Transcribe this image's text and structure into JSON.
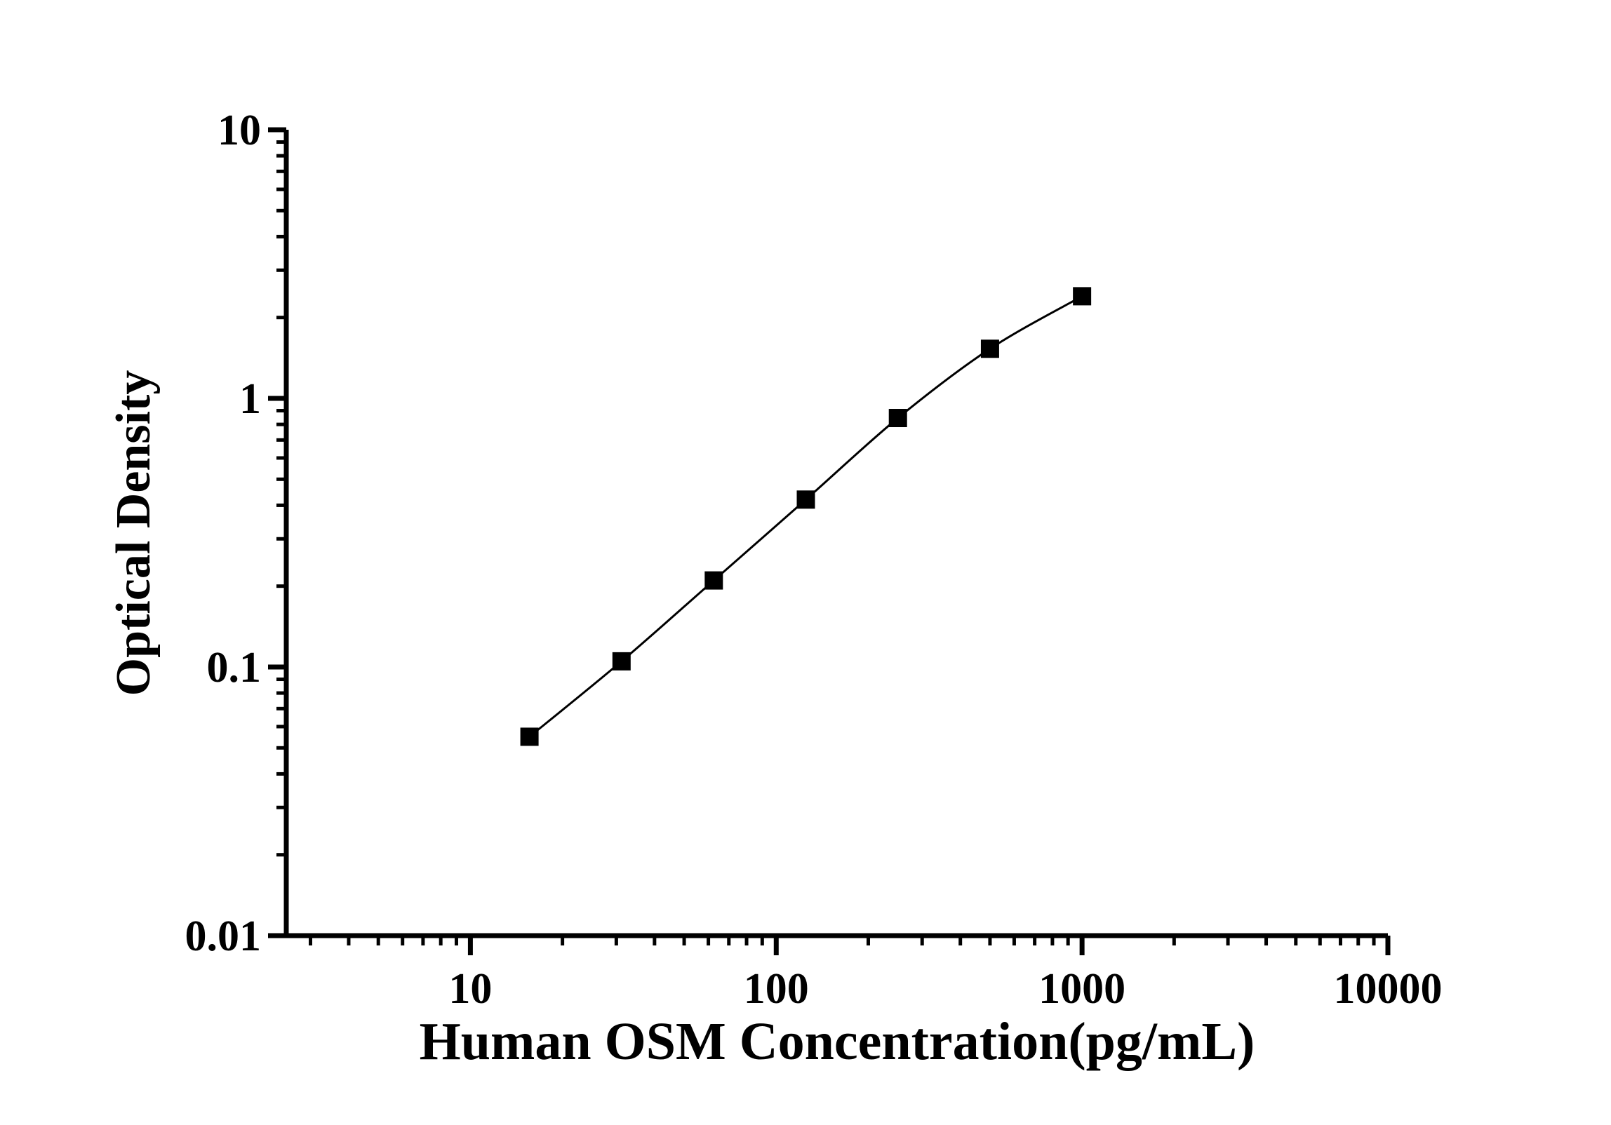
{
  "chart_data": {
    "type": "line",
    "subtype": "scatter-line-log-log",
    "title": "",
    "xlabel": "Human OSM Concentration(pg/mL)",
    "ylabel": "Optical Density",
    "x_scale": "log",
    "y_scale": "log",
    "xlim": [
      2.5,
      10000
    ],
    "ylim": [
      0.01,
      10
    ],
    "grid": false,
    "legend": false,
    "background_color": "#ffffff",
    "line_color": "#000000",
    "marker_color": "#000000",
    "marker_shape": "square",
    "x_ticks": [
      {
        "value": 10,
        "label": "10"
      },
      {
        "value": 100,
        "label": "100"
      },
      {
        "value": 1000,
        "label": "1000"
      },
      {
        "value": 10000,
        "label": "10000"
      }
    ],
    "y_ticks": [
      {
        "value": 10,
        "label": "10"
      },
      {
        "value": 1,
        "label": "1"
      },
      {
        "value": 0.1,
        "label": "0.1"
      },
      {
        "value": 0.01,
        "label": "0.01"
      }
    ],
    "series": [
      {
        "points": [
          {
            "x": 15.6,
            "y": 0.055
          },
          {
            "x": 31.2,
            "y": 0.105
          },
          {
            "x": 62.5,
            "y": 0.21
          },
          {
            "x": 125,
            "y": 0.42
          },
          {
            "x": 250,
            "y": 0.845
          },
          {
            "x": 500,
            "y": 1.53
          },
          {
            "x": 1000,
            "y": 2.4
          }
        ]
      }
    ]
  }
}
